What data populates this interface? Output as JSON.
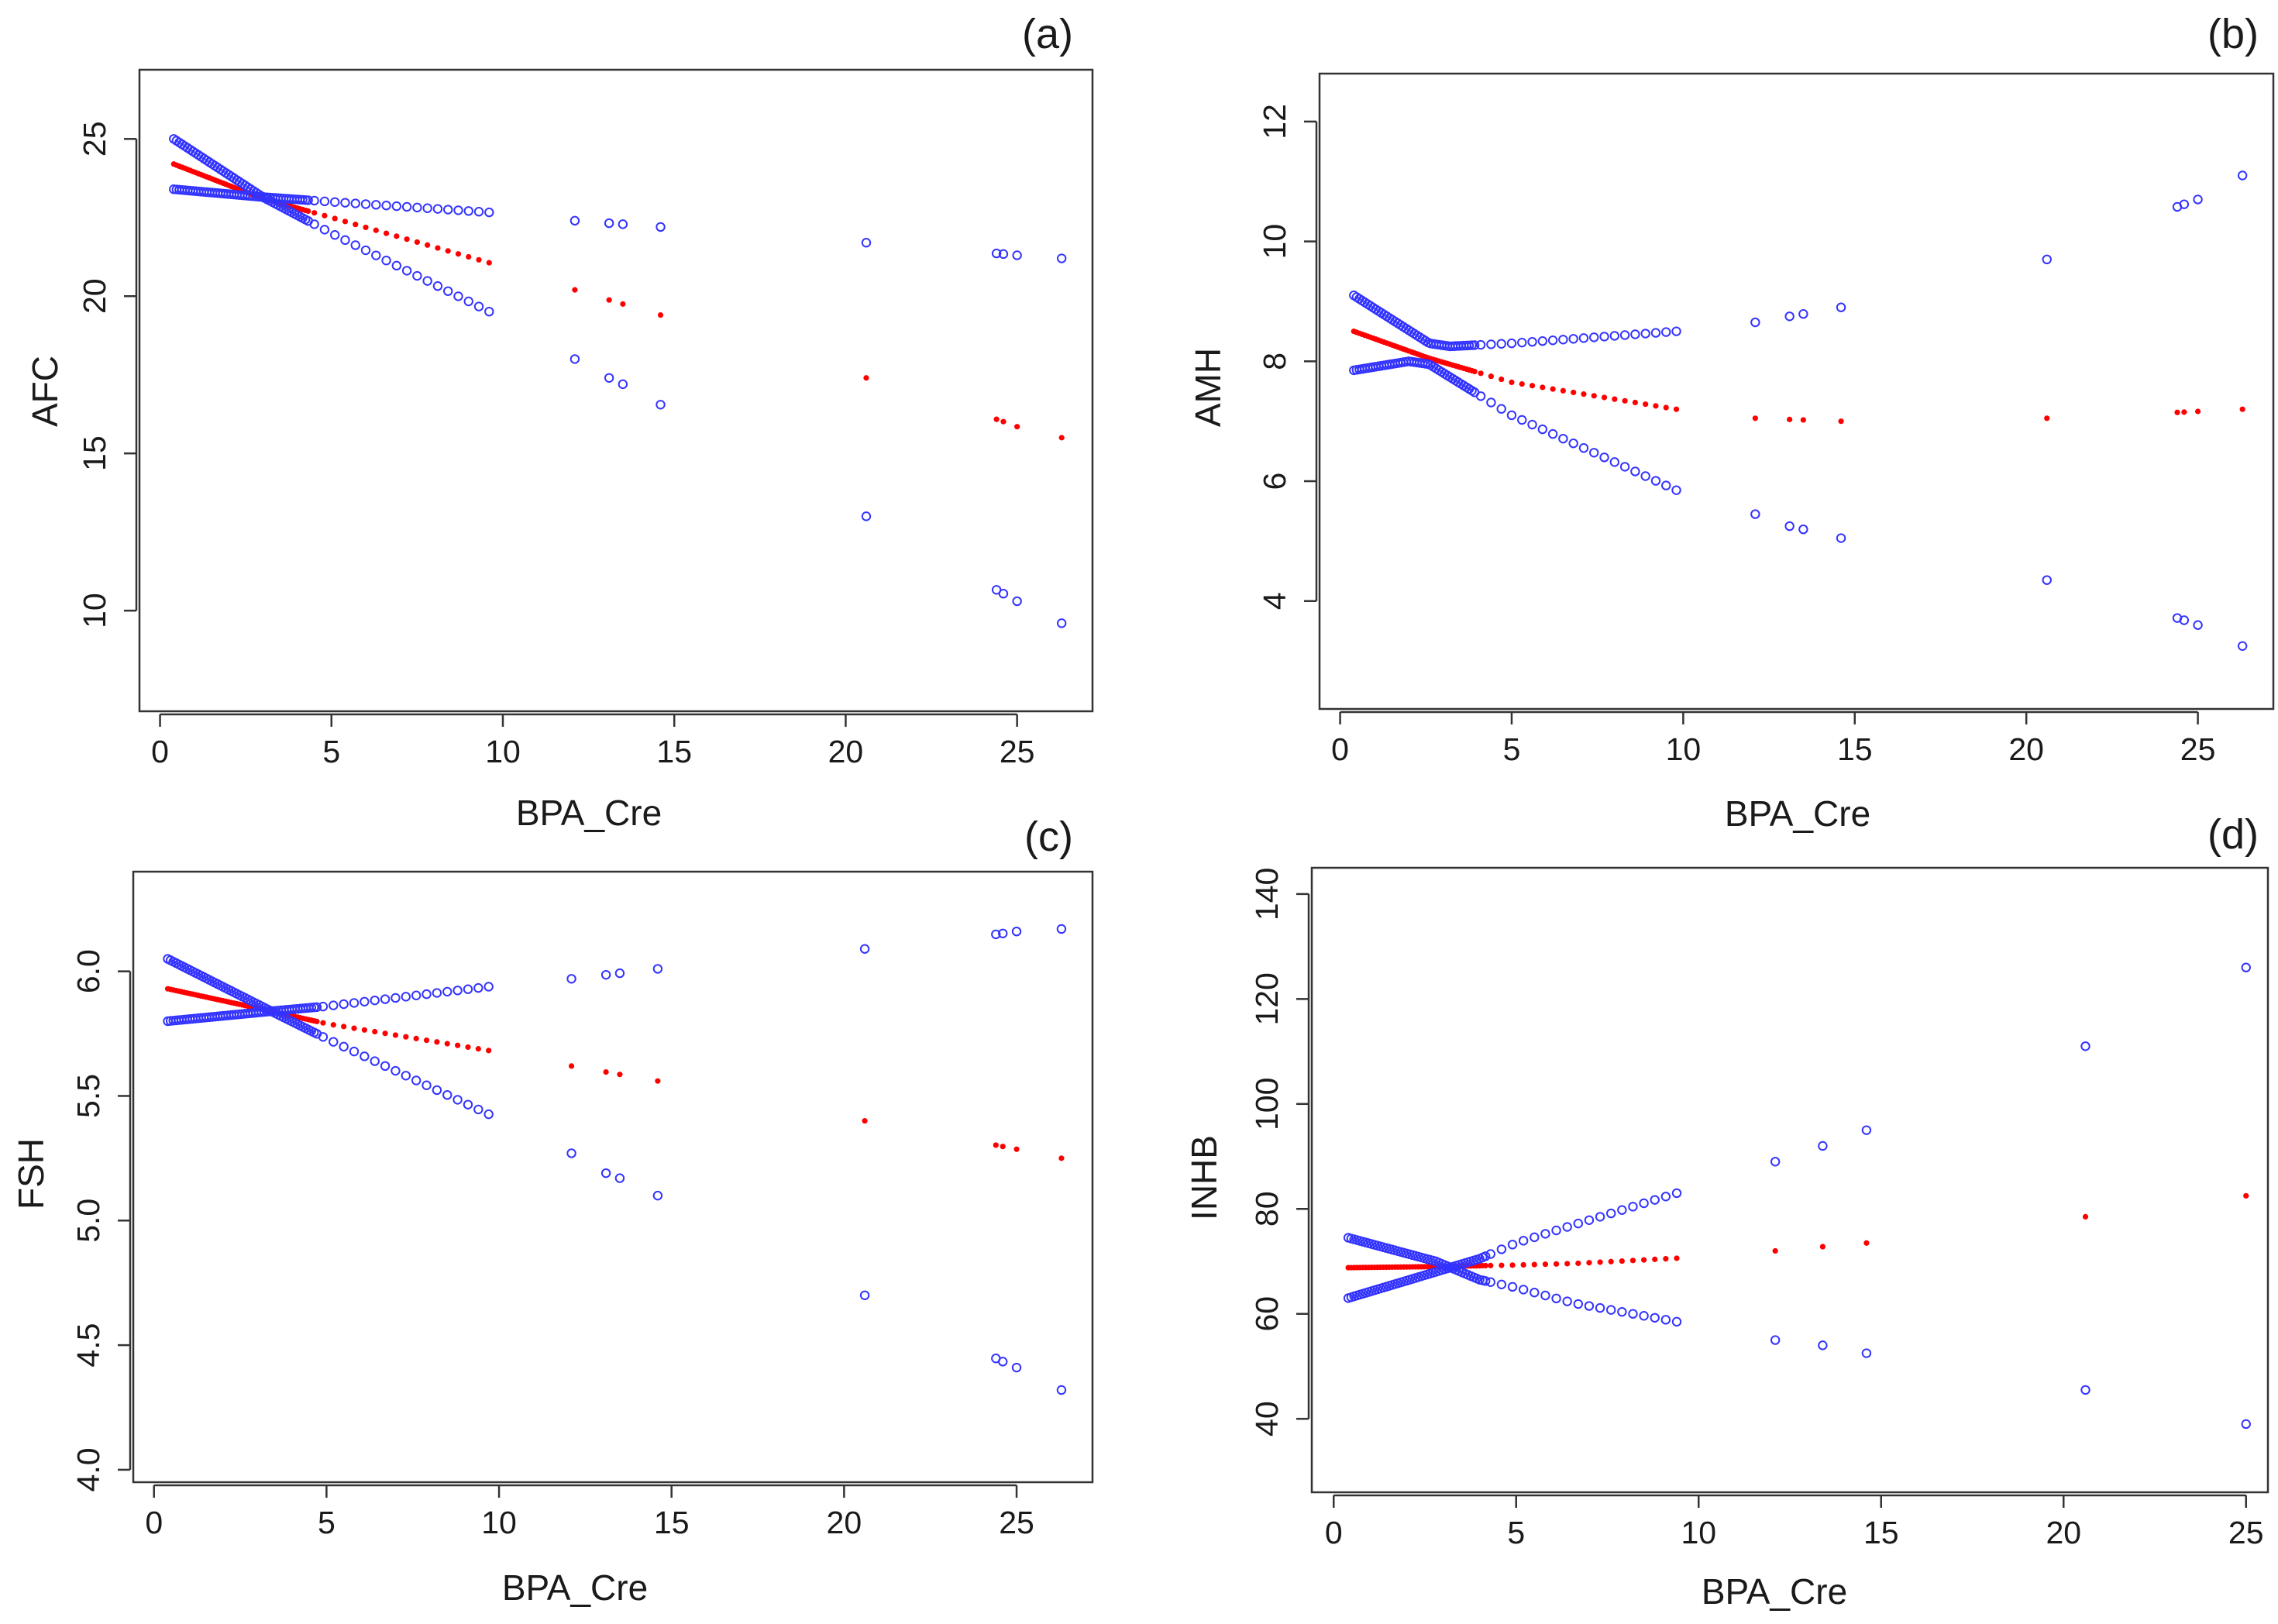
{
  "chart_data": [
    {
      "type": "scatter",
      "panel_label": "(a)",
      "xlabel": "BPA_Cre",
      "ylabel": "AFC",
      "xlim": [
        -0.6,
        27.2
      ],
      "ylim": [
        6.8,
        27.2
      ],
      "xticks": [
        0,
        5,
        10,
        15,
        20,
        25
      ],
      "yticks": [
        10,
        15,
        20,
        25
      ],
      "isolated_x": [
        12.1,
        13.1,
        13.5,
        14.6,
        20.6,
        24.4,
        24.6,
        25.0,
        26.3
      ],
      "pivot_x": 3.0,
      "x_start": 0.4,
      "x_dense_end": 9.8,
      "series": [
        {
          "role": "estimate",
          "color": "#ff0000",
          "anchors": [
            [
              0.4,
              24.2
            ],
            [
              3.0,
              23.1
            ],
            [
              5.0,
              22.5
            ],
            [
              9.8,
              21.0
            ],
            [
              12.1,
              20.2
            ],
            [
              13.5,
              19.75
            ],
            [
              14.6,
              19.4
            ],
            [
              20.6,
              17.4
            ],
            [
              24.5,
              16.05
            ],
            [
              25.0,
              15.85
            ],
            [
              26.3,
              15.5
            ]
          ]
        },
        {
          "role": "upper",
          "color": "#3333ff",
          "anchors": [
            [
              0.4,
              23.4
            ],
            [
              3.0,
              23.15
            ],
            [
              5.0,
              23.0
            ],
            [
              9.8,
              22.65
            ],
            [
              12.1,
              22.4
            ],
            [
              14.6,
              22.2
            ],
            [
              20.6,
              21.7
            ],
            [
              24.5,
              21.35
            ],
            [
              25.0,
              21.3
            ],
            [
              26.3,
              21.2
            ]
          ]
        },
        {
          "role": "lower",
          "color": "#3333ff",
          "anchors": [
            [
              0.4,
              25.0
            ],
            [
              3.0,
              23.15
            ],
            [
              5.0,
              22.0
            ],
            [
              9.8,
              19.4
            ],
            [
              12.1,
              18.0
            ],
            [
              13.1,
              17.4
            ],
            [
              13.5,
              17.2
            ],
            [
              14.6,
              16.55
            ],
            [
              20.6,
              13.0
            ],
            [
              24.5,
              10.6
            ],
            [
              25.0,
              10.3
            ],
            [
              26.3,
              9.6
            ]
          ]
        }
      ]
    },
    {
      "type": "scatter",
      "panel_label": "(b)",
      "xlabel": "BPA_Cre",
      "ylabel": "AMH",
      "xlim": [
        -0.6,
        27.2
      ],
      "ylim": [
        2.2,
        12.8
      ],
      "xticks": [
        0,
        5,
        10,
        15,
        20,
        25
      ],
      "yticks": [
        4,
        6,
        8,
        10,
        12
      ],
      "isolated_x": [
        12.1,
        13.1,
        13.5,
        14.6,
        20.6,
        24.4,
        24.6,
        25.0,
        26.3
      ],
      "pivot_x": 2.6,
      "x_start": 0.4,
      "x_dense_end": 9.8,
      "series": [
        {
          "role": "estimate",
          "color": "#ff0000",
          "anchors": [
            [
              0.4,
              8.5
            ],
            [
              2.6,
              8.05
            ],
            [
              5.0,
              7.65
            ],
            [
              9.8,
              7.2
            ],
            [
              12.1,
              7.05
            ],
            [
              14.6,
              7.0
            ],
            [
              20.6,
              7.05
            ],
            [
              24.5,
              7.15
            ],
            [
              26.3,
              7.2
            ]
          ]
        },
        {
          "role": "upper",
          "color": "#3333ff",
          "anchors": [
            [
              0.4,
              9.1
            ],
            [
              2.6,
              8.3
            ],
            [
              3.2,
              8.25
            ],
            [
              5.0,
              8.3
            ],
            [
              9.8,
              8.5
            ],
            [
              12.1,
              8.65
            ],
            [
              14.6,
              8.9
            ],
            [
              20.6,
              9.7
            ],
            [
              24.5,
              10.6
            ],
            [
              25.0,
              10.7
            ],
            [
              26.3,
              11.1
            ]
          ]
        },
        {
          "role": "lower",
          "color": "#3333ff",
          "anchors": [
            [
              0.4,
              7.85
            ],
            [
              2.0,
              8.0
            ],
            [
              2.6,
              7.95
            ],
            [
              5.0,
              7.1
            ],
            [
              9.8,
              5.85
            ],
            [
              12.1,
              5.45
            ],
            [
              13.1,
              5.25
            ],
            [
              14.6,
              5.05
            ],
            [
              20.6,
              4.35
            ],
            [
              24.5,
              3.7
            ],
            [
              25.0,
              3.6
            ],
            [
              26.3,
              3.25
            ]
          ]
        }
      ]
    },
    {
      "type": "scatter",
      "panel_label": "(c)",
      "xlabel": "BPA_Cre",
      "ylabel": "FSH",
      "xlim": [
        -0.6,
        27.2
      ],
      "ylim": [
        3.95,
        6.4
      ],
      "xticks": [
        0,
        5,
        10,
        15,
        20,
        25
      ],
      "yticks": [
        4.0,
        4.5,
        5.0,
        5.5,
        6.0
      ],
      "ytick_format": 1,
      "isolated_x": [
        12.1,
        13.1,
        13.5,
        14.6,
        20.6,
        24.4,
        24.6,
        25.0,
        26.3
      ],
      "pivot_x": 3.4,
      "x_start": 0.4,
      "x_dense_end": 9.8,
      "series": [
        {
          "role": "estimate",
          "color": "#ff0000",
          "anchors": [
            [
              0.4,
              5.93
            ],
            [
              3.4,
              5.84
            ],
            [
              5.0,
              5.79
            ],
            [
              9.8,
              5.68
            ],
            [
              12.1,
              5.62
            ],
            [
              14.6,
              5.56
            ],
            [
              20.6,
              5.4
            ],
            [
              24.5,
              5.3
            ],
            [
              26.3,
              5.25
            ]
          ]
        },
        {
          "role": "upper",
          "color": "#3333ff",
          "anchors": [
            [
              0.4,
              5.8
            ],
            [
              3.4,
              5.84
            ],
            [
              5.0,
              5.86
            ],
            [
              9.8,
              5.94
            ],
            [
              12.1,
              5.97
            ],
            [
              14.6,
              6.01
            ],
            [
              20.6,
              6.09
            ],
            [
              24.5,
              6.15
            ],
            [
              25.0,
              6.16
            ],
            [
              26.3,
              6.17
            ]
          ]
        },
        {
          "role": "lower",
          "color": "#3333ff",
          "anchors": [
            [
              0.4,
              6.05
            ],
            [
              3.4,
              5.84
            ],
            [
              5.0,
              5.73
            ],
            [
              9.8,
              5.42
            ],
            [
              12.1,
              5.27
            ],
            [
              13.1,
              5.19
            ],
            [
              13.5,
              5.17
            ],
            [
              14.6,
              5.1
            ],
            [
              20.6,
              4.7
            ],
            [
              24.5,
              4.44
            ],
            [
              25.0,
              4.41
            ],
            [
              26.3,
              4.32
            ]
          ]
        }
      ]
    },
    {
      "type": "scatter",
      "panel_label": "(d)",
      "xlabel": "BPA_Cre",
      "ylabel": "INHB",
      "xlim": [
        -0.6,
        25.6
      ],
      "ylim": [
        26,
        145
      ],
      "xticks": [
        0,
        5,
        10,
        15,
        20,
        25
      ],
      "yticks": [
        40,
        60,
        80,
        100,
        120,
        140
      ],
      "isolated_x": [
        12.1,
        13.4,
        14.6,
        20.6,
        25.0
      ],
      "pivot_x": 2.8,
      "x_start": 0.4,
      "x_dense_end": 9.4,
      "series": [
        {
          "role": "estimate",
          "color": "#ff0000",
          "anchors": [
            [
              0.4,
              68.8
            ],
            [
              2.8,
              69.0
            ],
            [
              5.0,
              69.3
            ],
            [
              6.6,
              69.6
            ],
            [
              9.4,
              70.6
            ],
            [
              12.1,
              72.0
            ],
            [
              13.4,
              72.8
            ],
            [
              14.6,
              73.5
            ],
            [
              20.6,
              78.5
            ],
            [
              25.0,
              82.5
            ]
          ]
        },
        {
          "role": "upper",
          "color": "#3333ff",
          "anchors": [
            [
              0.4,
              63.0
            ],
            [
              2.8,
              68.0
            ],
            [
              4.0,
              70.5
            ],
            [
              5.0,
              73.5
            ],
            [
              6.6,
              77.0
            ],
            [
              9.4,
              83.0
            ],
            [
              12.1,
              89.0
            ],
            [
              13.4,
              92.0
            ],
            [
              14.6,
              95.0
            ],
            [
              20.6,
              111.0
            ],
            [
              25.0,
              126.0
            ]
          ]
        },
        {
          "role": "lower",
          "color": "#3333ff",
          "anchors": [
            [
              0.4,
              74.5
            ],
            [
              2.8,
              70.0
            ],
            [
              4.0,
              66.5
            ],
            [
              5.0,
              65.0
            ],
            [
              6.6,
              62.0
            ],
            [
              9.4,
              58.5
            ],
            [
              12.1,
              55.0
            ],
            [
              13.4,
              54.0
            ],
            [
              14.6,
              52.5
            ],
            [
              20.6,
              45.5
            ],
            [
              25.0,
              39.0
            ]
          ]
        }
      ]
    }
  ]
}
